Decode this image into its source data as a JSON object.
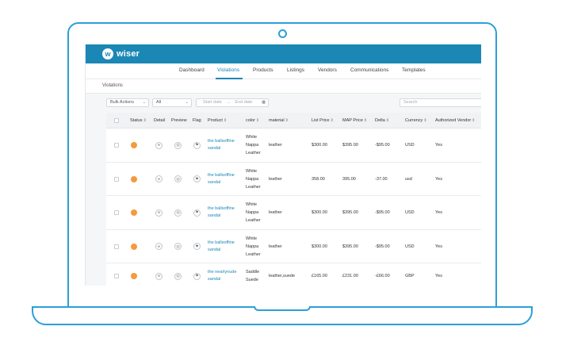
{
  "app": {
    "logo_letter": "w",
    "logo_text": "wiser"
  },
  "nav": {
    "tabs": [
      {
        "label": "Dashboard",
        "active": false
      },
      {
        "label": "Violations",
        "active": true
      },
      {
        "label": "Products",
        "active": false
      },
      {
        "label": "Listings",
        "active": false
      },
      {
        "label": "Vendors",
        "active": false
      },
      {
        "label": "Communications",
        "active": false
      },
      {
        "label": "Templates",
        "active": false
      }
    ]
  },
  "page": {
    "title": "Violations"
  },
  "toolbar": {
    "bulk_actions": "Bulk Actions",
    "filter_value": "All",
    "start_date_placeholder": "Start date",
    "date_separator": "→",
    "end_date_placeholder": "End date",
    "search_placeholder": "Search"
  },
  "table": {
    "columns": [
      "Status",
      "Detail",
      "Preview",
      "Flag",
      "Product",
      "color",
      "material",
      "List Price",
      "MAP Price",
      "Delta",
      "Currency",
      "Authorized Vendor"
    ],
    "rows": [
      {
        "status_color": "#f59a3c",
        "product": [
          "the ballsoffine",
          "sandal"
        ],
        "color": [
          "White",
          "Nappa",
          "Leather"
        ],
        "material": "leather",
        "list_price": "$300.00",
        "map_price": "$395.00",
        "delta": "-$95.00",
        "currency": "USD",
        "authorized": "Yes"
      },
      {
        "status_color": "#f59a3c",
        "product": [
          "the ballsoffine",
          "sandal"
        ],
        "color": [
          "White",
          "Nappa",
          "Leather"
        ],
        "material": "leather",
        "list_price": "358.00",
        "map_price": "395.00",
        "delta": "-37.00",
        "currency": "usd",
        "authorized": "Yes"
      },
      {
        "status_color": "#f59a3c",
        "product": [
          "the ballsoffine",
          "sandal"
        ],
        "color": [
          "White",
          "Nappa",
          "Leather"
        ],
        "material": "leather",
        "list_price": "$300.00",
        "map_price": "$395.00",
        "delta": "-$95.00",
        "currency": "USD",
        "authorized": "Yes"
      },
      {
        "status_color": "#f59a3c",
        "product": [
          "the ballsoffine",
          "sandal"
        ],
        "color": [
          "White",
          "Nappa",
          "Leather"
        ],
        "material": "leather",
        "list_price": "$300.00",
        "map_price": "$395.00",
        "delta": "-$95.00",
        "currency": "USD",
        "authorized": "Yes"
      },
      {
        "status_color": "#f59a3c",
        "product": [
          "the nearlynude",
          "sandal"
        ],
        "color": [
          "Saddle",
          "Suede"
        ],
        "material": "leather,suede",
        "list_price": "£165.00",
        "map_price": "£231.00",
        "delta": "-£66.00",
        "currency": "GBP",
        "authorized": "Yes"
      }
    ]
  },
  "icons": {
    "detail": "link-icon",
    "preview": "compass-icon",
    "flag": "flag-icon"
  },
  "colors": {
    "brand": "#1b87b5",
    "device_outline": "#2d9fd8",
    "status_warning": "#f59a3c"
  }
}
